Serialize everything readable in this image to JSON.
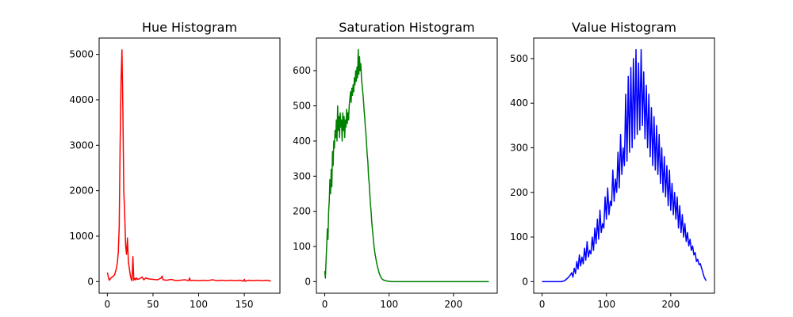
{
  "chart_data": [
    {
      "type": "line",
      "title": "Hue Histogram",
      "color": "#ff0000",
      "xlim": [
        -9,
        189
      ],
      "ylim": [
        -256,
        5360
      ],
      "xticks": [
        0,
        50,
        100,
        150
      ],
      "yticks": [
        0,
        1000,
        2000,
        3000,
        4000,
        5000
      ],
      "series": [
        {
          "x": [
            0,
            2,
            4,
            6,
            8,
            10,
            11,
            12,
            13,
            14,
            15,
            16,
            17,
            18,
            19,
            20,
            21,
            22,
            23,
            24,
            25,
            26,
            27,
            28,
            29,
            30,
            31,
            32,
            33,
            35,
            38,
            40,
            42,
            45,
            50,
            55,
            59,
            60,
            61,
            65,
            70,
            75,
            80,
            85,
            89,
            90,
            91,
            95,
            100,
            105,
            110,
            115,
            120,
            125,
            130,
            135,
            140,
            145,
            149,
            150,
            151,
            155,
            160,
            165,
            170,
            175,
            179
          ],
          "y": [
            200,
            30,
            80,
            110,
            150,
            300,
            420,
            650,
            1200,
            3000,
            4400,
            5100,
            3800,
            2000,
            1500,
            800,
            600,
            960,
            450,
            300,
            160,
            60,
            20,
            550,
            30,
            70,
            40,
            80,
            50,
            60,
            100,
            40,
            80,
            60,
            50,
            40,
            80,
            120,
            40,
            30,
            50,
            20,
            30,
            40,
            20,
            80,
            20,
            30,
            20,
            30,
            20,
            40,
            20,
            30,
            20,
            30,
            20,
            30,
            10,
            50,
            10,
            30,
            20,
            30,
            20,
            30,
            10
          ]
        }
      ]
    },
    {
      "type": "line",
      "title": "Saturation Histogram",
      "color": "#008000",
      "xlim": [
        -13,
        268
      ],
      "ylim": [
        -33,
        693
      ],
      "xticks": [
        0,
        100,
        200
      ],
      "yticks": [
        0,
        100,
        200,
        300,
        400,
        500,
        600
      ],
      "series": [
        {
          "x": [
            0,
            1,
            2,
            3,
            4,
            5,
            6,
            7,
            8,
            9,
            10,
            11,
            12,
            13,
            14,
            15,
            16,
            17,
            18,
            19,
            20,
            21,
            22,
            23,
            24,
            25,
            26,
            27,
            28,
            29,
            30,
            31,
            32,
            33,
            34,
            35,
            36,
            37,
            38,
            39,
            40,
            41,
            42,
            43,
            44,
            45,
            46,
            47,
            48,
            49,
            50,
            51,
            52,
            53,
            54,
            55,
            56,
            57,
            58,
            59,
            60,
            61,
            62,
            63,
            64,
            65,
            66,
            67,
            68,
            69,
            70,
            71,
            72,
            73,
            74,
            75,
            76,
            77,
            78,
            79,
            80,
            81,
            82,
            83,
            84,
            85,
            86,
            87,
            88,
            89,
            90,
            92,
            94,
            96,
            98,
            100,
            103,
            106,
            110,
            115,
            120,
            140,
            160,
            180,
            200,
            220,
            240,
            255
          ],
          "y": [
            30,
            10,
            60,
            100,
            150,
            120,
            200,
            230,
            290,
            250,
            320,
            270,
            370,
            330,
            400,
            380,
            430,
            410,
            460,
            400,
            500,
            430,
            470,
            410,
            480,
            440,
            460,
            400,
            480,
            430,
            470,
            410,
            460,
            440,
            490,
            450,
            480,
            460,
            500,
            520,
            540,
            510,
            550,
            530,
            560,
            540,
            580,
            560,
            600,
            570,
            610,
            580,
            660,
            590,
            640,
            600,
            620,
            580,
            560,
            540,
            520,
            490,
            470,
            440,
            420,
            390,
            360,
            340,
            300,
            280,
            250,
            220,
            200,
            170,
            150,
            130,
            110,
            95,
            80,
            70,
            60,
            50,
            42,
            35,
            28,
            22,
            18,
            14,
            10,
            8,
            6,
            4,
            3,
            2,
            1,
            1,
            0,
            0,
            0,
            0,
            0,
            0,
            0,
            0,
            0,
            0,
            0,
            0
          ]
        }
      ]
    },
    {
      "type": "line",
      "title": "Value Histogram",
      "color": "#0000ff",
      "xlim": [
        -13,
        268
      ],
      "ylim": [
        -26,
        546
      ],
      "xticks": [
        0,
        100,
        200
      ],
      "yticks": [
        0,
        100,
        200,
        300,
        400,
        500
      ],
      "series": [
        {
          "x": [
            0,
            10,
            20,
            30,
            35,
            40,
            44,
            46,
            48,
            50,
            52,
            54,
            56,
            58,
            60,
            62,
            64,
            66,
            68,
            70,
            72,
            74,
            76,
            78,
            80,
            82,
            84,
            86,
            88,
            90,
            92,
            94,
            96,
            98,
            100,
            102,
            104,
            106,
            108,
            110,
            112,
            114,
            116,
            118,
            120,
            122,
            124,
            126,
            128,
            130,
            132,
            134,
            136,
            138,
            140,
            142,
            144,
            146,
            148,
            150,
            152,
            154,
            156,
            158,
            160,
            162,
            164,
            166,
            168,
            170,
            172,
            174,
            176,
            178,
            180,
            182,
            184,
            186,
            188,
            190,
            192,
            194,
            196,
            198,
            200,
            202,
            204,
            206,
            208,
            210,
            212,
            214,
            216,
            218,
            220,
            222,
            224,
            226,
            228,
            230,
            232,
            234,
            236,
            238,
            240,
            242,
            244,
            246,
            248,
            250,
            252,
            255
          ],
          "y": [
            0,
            0,
            0,
            0,
            2,
            8,
            15,
            20,
            10,
            30,
            18,
            45,
            28,
            60,
            35,
            55,
            40,
            75,
            48,
            90,
            55,
            70,
            62,
            100,
            70,
            120,
            85,
            140,
            95,
            160,
            110,
            130,
            120,
            190,
            140,
            210,
            150,
            180,
            170,
            250,
            180,
            230,
            200,
            290,
            210,
            330,
            240,
            300,
            260,
            420,
            270,
            460,
            290,
            480,
            300,
            500,
            320,
            520,
            330,
            490,
            340,
            520,
            350,
            470,
            320,
            440,
            300,
            420,
            280,
            390,
            260,
            370,
            250,
            350,
            240,
            330,
            220,
            300,
            200,
            280,
            190,
            260,
            170,
            250,
            160,
            220,
            150,
            200,
            140,
            190,
            120,
            170,
            110,
            150,
            100,
            130,
            90,
            110,
            80,
            95,
            70,
            80,
            60,
            65,
            45,
            50,
            38,
            40,
            30,
            20,
            10,
            2
          ]
        }
      ]
    }
  ]
}
